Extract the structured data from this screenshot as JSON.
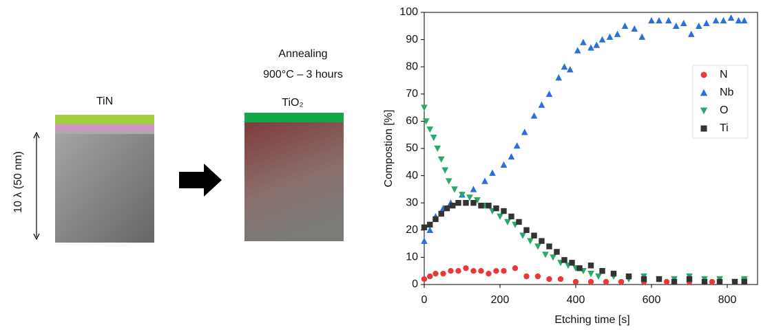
{
  "diagram": {
    "before_label": "TiN",
    "thickness_label": "10 λ (50 nm)",
    "process_line1": "Annealing",
    "process_line2": "900°C – 3 hours",
    "after_label": "TiO₂"
  },
  "chart_data": {
    "type": "scatter",
    "xlabel": "Etching time [s]",
    "ylabel": "Compostion [%]",
    "xlim": [
      0,
      880
    ],
    "ylim": [
      0,
      100
    ],
    "xticks": [
      0,
      200,
      400,
      600,
      800
    ],
    "yticks": [
      0,
      10,
      20,
      30,
      40,
      50,
      60,
      70,
      80,
      90,
      100
    ],
    "legend": "upper right",
    "series": [
      {
        "name": "N",
        "color": "#e8393a",
        "marker": "circle",
        "x": [
          0,
          15,
          30,
          50,
          70,
          90,
          110,
          130,
          150,
          170,
          190,
          210,
          240,
          270,
          300,
          330,
          360,
          400,
          440,
          480,
          520,
          580,
          640,
          700,
          760,
          820,
          845
        ],
        "values": [
          2,
          3,
          4,
          4,
          5,
          5,
          6,
          5,
          5,
          4,
          5,
          5,
          6,
          3,
          3,
          2,
          2,
          1,
          1,
          1,
          1,
          1,
          1,
          1,
          1,
          1,
          2
        ]
      },
      {
        "name": "Nb",
        "color": "#2a6fdb",
        "marker": "triangle-up",
        "x": [
          0,
          15,
          30,
          50,
          70,
          100,
          130,
          160,
          180,
          210,
          230,
          245,
          265,
          290,
          310,
          330,
          355,
          370,
          385,
          405,
          420,
          440,
          455,
          470,
          490,
          510,
          530,
          555,
          575,
          600,
          620,
          645,
          665,
          685,
          705,
          725,
          745,
          770,
          790,
          810,
          830,
          845
        ],
        "values": [
          16,
          20,
          25,
          28,
          30,
          33,
          35,
          38,
          41,
          44,
          47,
          51,
          56,
          62,
          66,
          70,
          76,
          80,
          79,
          86,
          89,
          87,
          88,
          90,
          91,
          92,
          95,
          94,
          91,
          97,
          97,
          97,
          95,
          96,
          92,
          95,
          96,
          97,
          97,
          98,
          97,
          97
        ]
      },
      {
        "name": "O",
        "color": "#2aa86a",
        "marker": "triangle-down",
        "x": [
          0,
          5,
          15,
          25,
          35,
          45,
          55,
          65,
          80,
          100,
          120,
          140,
          160,
          180,
          200,
          220,
          240,
          260,
          280,
          300,
          320,
          340,
          360,
          380,
          400,
          420,
          440,
          460,
          500,
          540,
          580,
          620,
          660,
          700,
          740,
          780,
          820,
          845
        ],
        "values": [
          65,
          60,
          57,
          54,
          50,
          46,
          42,
          38,
          35,
          33,
          32,
          31,
          29,
          27,
          25,
          23,
          22,
          18,
          16,
          14,
          11,
          10,
          8,
          7,
          6,
          5,
          4,
          3,
          3,
          2,
          3,
          2,
          2,
          3,
          2,
          2,
          1,
          2
        ]
      },
      {
        "name": "Ti",
        "color": "#333333",
        "marker": "square",
        "x": [
          0,
          15,
          30,
          45,
          60,
          75,
          90,
          110,
          130,
          150,
          170,
          190,
          210,
          230,
          250,
          270,
          290,
          310,
          330,
          350,
          370,
          390,
          410,
          440,
          470,
          500,
          540,
          580,
          620,
          660,
          700,
          740,
          780,
          820,
          845
        ],
        "values": [
          21,
          22,
          24,
          26,
          28,
          29,
          30,
          30,
          30,
          29,
          29,
          28,
          27,
          25,
          23,
          20,
          18,
          16,
          14,
          12,
          9,
          8,
          6,
          7,
          5,
          4,
          3,
          2,
          2,
          1,
          2,
          1,
          1,
          1,
          1
        ]
      }
    ]
  }
}
